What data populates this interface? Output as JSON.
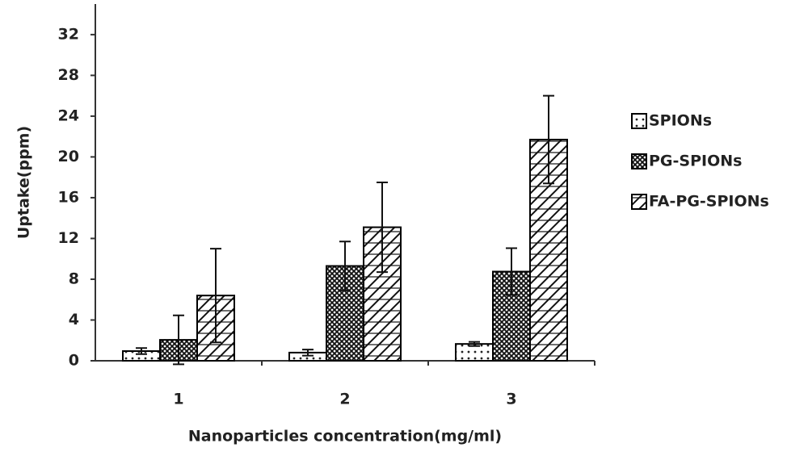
{
  "chart_data": {
    "type": "bar",
    "x_label": "Nanoparticles concentration(mg/ml)",
    "y_label": "Uptake(ppm)",
    "categories": [
      "1",
      "2",
      "3"
    ],
    "series": [
      {
        "name": "SPIONs",
        "color": "#000000",
        "values": [
          0.95,
          0.8,
          1.65
        ],
        "errors": [
          0.3,
          0.3,
          0.2
        ]
      },
      {
        "name": "PG-SPIONs",
        "color": "#000000",
        "values": [
          2.05,
          9.3,
          8.75
        ],
        "errors": [
          2.4,
          2.4,
          2.3
        ]
      },
      {
        "name": "FA-PG-SPIONs",
        "color": "#000000",
        "values": [
          6.4,
          13.1,
          21.7
        ],
        "errors": [
          4.6,
          4.4,
          4.3
        ]
      }
    ],
    "ylim": [
      0,
      35
    ],
    "yticks": [
      0,
      4,
      8,
      12,
      16,
      20,
      24,
      28,
      32
    ],
    "grid": false
  }
}
